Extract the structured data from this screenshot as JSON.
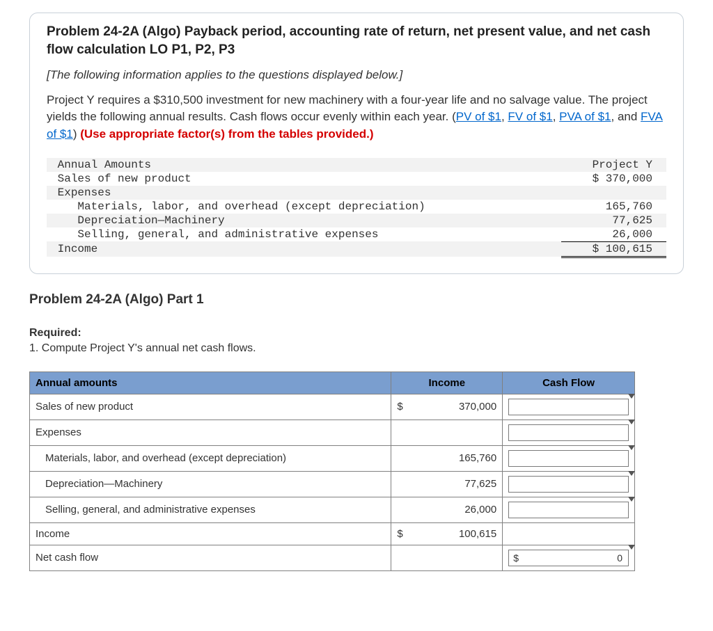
{
  "problem": {
    "title": "Problem 24-2A (Algo) Payback period, accounting rate of return, net present value, and net cash flow calculation LO P1, P2, P3",
    "italic_note": "[The following information applies to the questions displayed below.]",
    "body_pre": "Project Y requires a $310,500 investment for new machinery with a four-year life and no salvage value. The project yields the following annual results. Cash flows occur evenly within each year. (",
    "links": {
      "pv": "PV of $1",
      "fv": "FV of $1",
      "pva": "PVA of $1",
      "fva": "FVA of $1"
    },
    "sep": ", ",
    "and": ", and ",
    "close_paren": ") ",
    "red_text": "(Use appropriate factor(s) from the tables provided.)"
  },
  "monoTable": {
    "header_label": "Annual Amounts",
    "header_value": "Project Y",
    "rows": [
      {
        "label": "Sales of new product",
        "value": "$ 370,000",
        "indent": 0
      },
      {
        "label": "Expenses",
        "value": "",
        "indent": 0
      },
      {
        "label": "Materials, labor, and overhead (except depreciation)",
        "value": "165,760",
        "indent": 1
      },
      {
        "label": "Depreciation—Machinery",
        "value": "77,625",
        "indent": 1
      },
      {
        "label": "Selling, general, and administrative expenses",
        "value": "26,000",
        "indent": 1
      }
    ],
    "total_label": "Income",
    "total_value": "$ 100,615"
  },
  "part": {
    "title": "Problem 24-2A (Algo) Part 1",
    "required_label": "Required:",
    "required_text": "1. Compute Project Y's annual net cash flows."
  },
  "answerTable": {
    "headers": {
      "c1": "Annual amounts",
      "c2": "Income",
      "c3": "Cash Flow"
    },
    "rows": [
      {
        "label": "Sales of new product",
        "income_dollar": "$",
        "income": "370,000",
        "cash_input": true
      },
      {
        "label": "Expenses",
        "income": "",
        "cash_input": true
      },
      {
        "label": "Materials, labor, and overhead (except depreciation)",
        "indent": 1,
        "income": "165,760",
        "cash_input": true
      },
      {
        "label": "Depreciation—Machinery",
        "indent": 1,
        "income": "77,625",
        "cash_input": true
      },
      {
        "label": "Selling, general, and administrative expenses",
        "indent": 1,
        "income": "26,000",
        "cash_input": true
      },
      {
        "label": "Income",
        "income_dollar": "$",
        "income": "100,615",
        "cash_input": false
      },
      {
        "label": "Net cash flow",
        "income": "",
        "cash_dollar": "$",
        "cash_value": "0",
        "cash_input": false,
        "cash_total": true
      }
    ]
  },
  "style": {
    "header_bg": "#7a9ecf",
    "border_color": "#808080",
    "link_color": "#0066cc",
    "red_color": "#d40000",
    "shade_bg": "#f2f2f2"
  }
}
